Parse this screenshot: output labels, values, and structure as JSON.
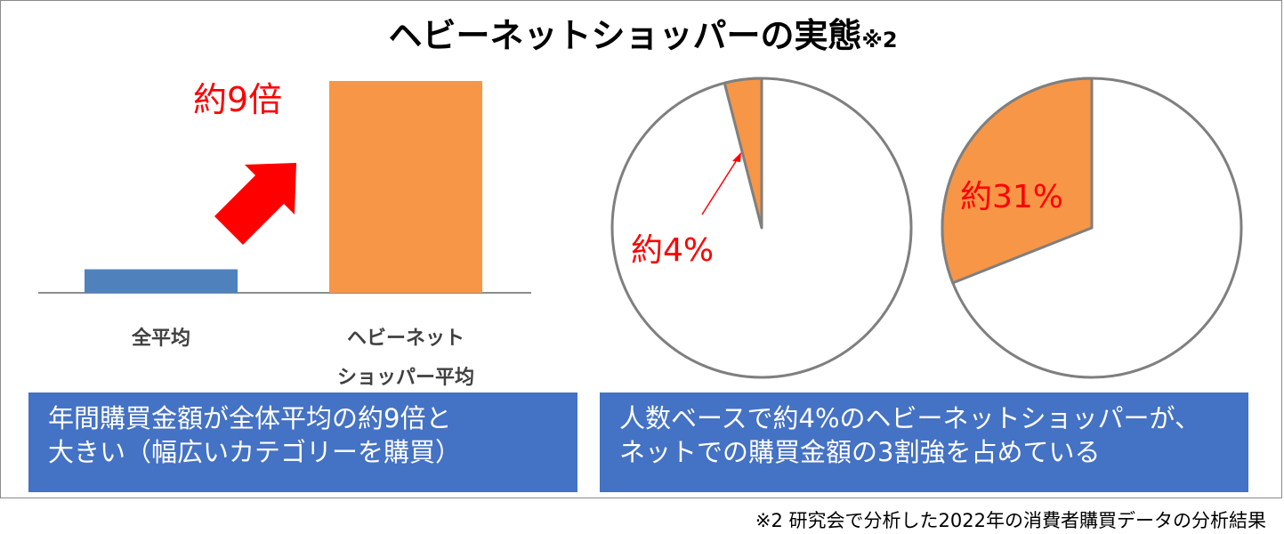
{
  "title": {
    "main": "ヘビーネットショッパーの実態",
    "suffix": "※2"
  },
  "chart_data": [
    {
      "type": "bar",
      "categories": [
        "全平均",
        "ヘビーネットショッパー平均"
      ],
      "category_lines": [
        [
          "全平均"
        ],
        [
          "ヘビーネット",
          "ショッパー平均"
        ]
      ],
      "values": [
        1,
        9
      ],
      "annotation": "約9倍",
      "colors": [
        "#4f81bd",
        "#f79646"
      ]
    },
    {
      "type": "pie",
      "slices": [
        {
          "value": 4,
          "label": "約4%",
          "color": "#f79646"
        },
        {
          "value": 96,
          "color": "#ffffff"
        }
      ],
      "label_color": "#ff0000"
    },
    {
      "type": "pie",
      "slices": [
        {
          "value": 31,
          "label": "約31%",
          "color": "#f79646"
        },
        {
          "value": 69,
          "color": "#ffffff"
        }
      ],
      "label_color": "#ff0000"
    }
  ],
  "textbox_left": [
    "年間購買金額が全体平均の約9倍と",
    "大きい（幅広いカテゴリーを購買）"
  ],
  "textbox_right": [
    "人数ベースで約4%のヘビーネットショッパーが、",
    "ネットでの購買金額の3割強を占めている"
  ],
  "footnote": "※2  研究会で分析した2022年の消費者購買データの分析結果",
  "colors": {
    "accent": "#f79646",
    "bar_blue": "#4f81bd",
    "box_blue": "#4472c4",
    "highlight": "#ff0000",
    "outline": "#7f7f7f"
  }
}
